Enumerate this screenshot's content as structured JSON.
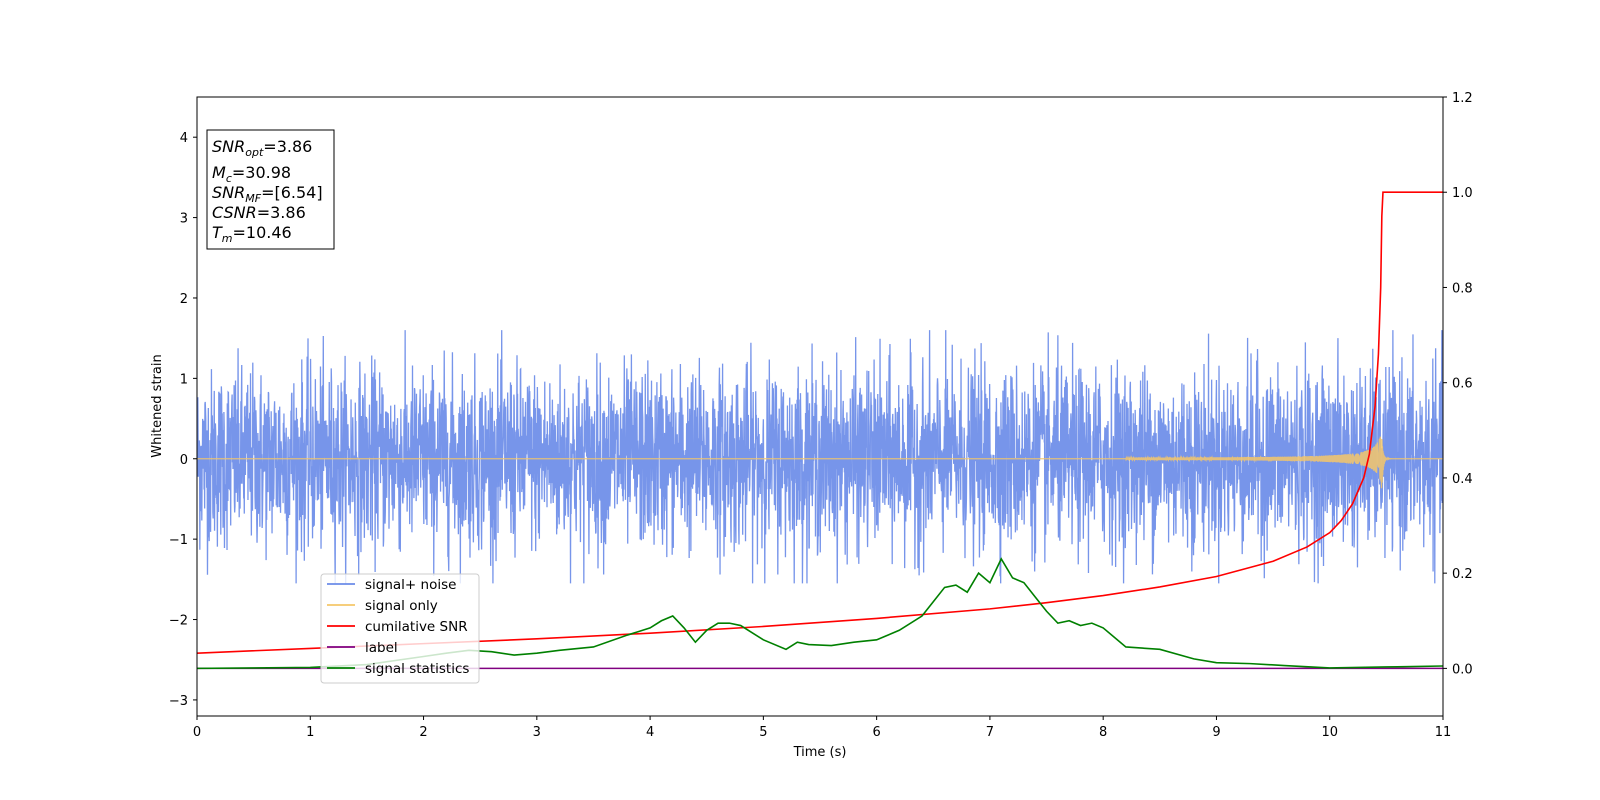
{
  "chart_data": {
    "type": "line",
    "xlabel": "Time (s)",
    "ylabel": "Whitened strain",
    "xlim": [
      0,
      11
    ],
    "ylim_left": [
      -3.2,
      4.5
    ],
    "ylim_right": [
      -0.1,
      1.2
    ],
    "x_ticks": [
      "0",
      "1",
      "2",
      "3",
      "4",
      "5",
      "6",
      "7",
      "8",
      "9",
      "10",
      "11"
    ],
    "y_ticks_left": [
      "−3",
      "−2",
      "−1",
      "0",
      "1",
      "2",
      "3",
      "4"
    ],
    "y_ticks_right": [
      "0.0",
      "0.2",
      "0.4",
      "0.6",
      "0.8",
      "1.0",
      "1.2"
    ],
    "legend_position": "lower-left",
    "grid": false,
    "annotation": {
      "snr_opt": {
        "sym": "SNR",
        "sub": "opt",
        "value": "=3.86"
      },
      "mc": {
        "sym": "M",
        "sub": "c",
        "value": "=30.98"
      },
      "snr_mf": {
        "sym": "SNR",
        "sub": "MF",
        "value": "=[6.54]"
      },
      "csnr": {
        "sym": "CSNR",
        "value": "=3.86"
      },
      "tm": {
        "sym": "T",
        "sub": "m",
        "value": "=10.46"
      }
    },
    "series": [
      {
        "name": "signal+ noise",
        "axis": "left",
        "color": "#6b8ce8",
        "kind": "noise",
        "sample_rate_hz": 400,
        "amplitude_sigma": 0.55,
        "envelope_range": [
          -1.55,
          1.6
        ]
      },
      {
        "name": "signal only",
        "axis": "left",
        "color": "#f5c76a",
        "kind": "chirp",
        "merger_time": 10.46,
        "peak_amplitude": 0.4
      },
      {
        "name": "cumilative SNR",
        "axis": "right",
        "color": "#ff0000",
        "x": [
          0,
          1,
          2,
          3,
          4,
          5,
          6,
          7,
          7.5,
          8,
          8.5,
          9,
          9.5,
          9.8,
          10,
          10.1,
          10.2,
          10.3,
          10.35,
          10.4,
          10.43,
          10.45,
          10.46,
          10.47,
          11
        ],
        "y": [
          0.032,
          0.042,
          0.052,
          0.062,
          0.074,
          0.088,
          0.105,
          0.125,
          0.138,
          0.153,
          0.171,
          0.193,
          0.225,
          0.255,
          0.285,
          0.31,
          0.345,
          0.4,
          0.45,
          0.55,
          0.66,
          0.8,
          0.95,
          1.0,
          1.0
        ]
      },
      {
        "name": "label",
        "axis": "right",
        "color": "#800080",
        "x": [
          0,
          11
        ],
        "y": [
          0,
          0
        ]
      },
      {
        "name": "signal statistics",
        "axis": "right",
        "color": "#008000",
        "x": [
          0,
          0.5,
          1.0,
          1.5,
          2.0,
          2.2,
          2.4,
          2.6,
          2.8,
          3.0,
          3.2,
          3.5,
          3.8,
          4.0,
          4.1,
          4.2,
          4.3,
          4.4,
          4.5,
          4.6,
          4.7,
          4.8,
          5.0,
          5.2,
          5.3,
          5.4,
          5.6,
          5.8,
          6.0,
          6.2,
          6.4,
          6.5,
          6.6,
          6.7,
          6.8,
          6.9,
          7.0,
          7.1,
          7.2,
          7.3,
          7.4,
          7.5,
          7.6,
          7.7,
          7.8,
          7.9,
          8.0,
          8.2,
          8.5,
          8.8,
          9.0,
          9.3,
          9.6,
          10.0,
          10.5,
          11
        ],
        "y": [
          0.0,
          0.001,
          0.002,
          0.008,
          0.025,
          0.032,
          0.038,
          0.035,
          0.028,
          0.032,
          0.038,
          0.045,
          0.07,
          0.085,
          0.1,
          0.11,
          0.085,
          0.055,
          0.08,
          0.095,
          0.095,
          0.09,
          0.06,
          0.04,
          0.055,
          0.05,
          0.048,
          0.055,
          0.06,
          0.08,
          0.11,
          0.14,
          0.17,
          0.175,
          0.16,
          0.2,
          0.18,
          0.23,
          0.19,
          0.18,
          0.15,
          0.12,
          0.095,
          0.1,
          0.09,
          0.095,
          0.085,
          0.045,
          0.04,
          0.02,
          0.012,
          0.01,
          0.006,
          0.001,
          0.003,
          0.005
        ]
      }
    ]
  }
}
